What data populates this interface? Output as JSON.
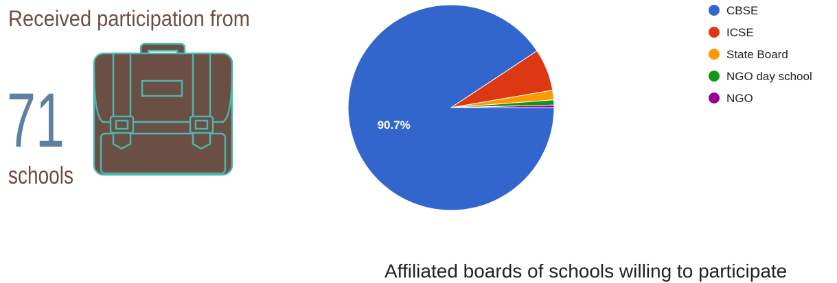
{
  "header": {
    "title": "Received participation from",
    "count": "71",
    "unit": "schools"
  },
  "chart_data": {
    "type": "pie",
    "title": "Affiliated boards of schools willing to participate",
    "categories": [
      "CBSE",
      "ICSE",
      "State Board",
      "NGO day school",
      "NGO"
    ],
    "values": [
      90.7,
      6.6,
      1.5,
      0.8,
      0.4
    ],
    "value_labels": [
      "90.7%",
      null,
      null,
      null,
      null
    ],
    "colors": [
      "#3366cc",
      "#dc3912",
      "#ff9900",
      "#109618",
      "#990099"
    ],
    "legend": "right"
  }
}
